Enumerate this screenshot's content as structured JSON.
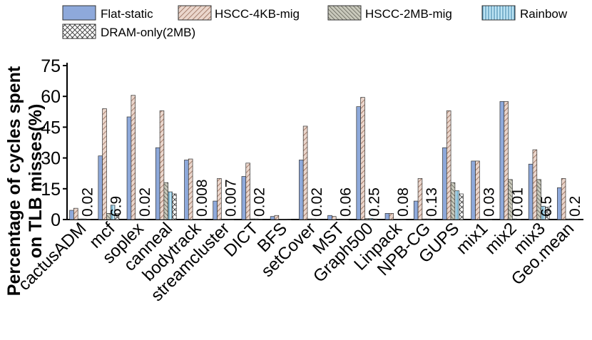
{
  "chart_data": {
    "type": "bar",
    "ylabel_line1": "Percentage of cycles spent",
    "ylabel_line2": "on TLB misses(%)",
    "xlabel": "",
    "ylim": [
      0,
      75
    ],
    "yticks": [
      0,
      15,
      30,
      45,
      60,
      75
    ],
    "grid": false,
    "legend_position": "top",
    "categories": [
      "cactusADM",
      "mcf",
      "soplex",
      "canneal",
      "bodytrack",
      "streamcluster",
      "DICT",
      "BFS",
      "setCover",
      "MST",
      "Graph500",
      "Linpack",
      "NPB-CG",
      "GUPS",
      "mix1",
      "mix2",
      "mix3",
      "Geo.mean"
    ],
    "series": [
      {
        "name": "Flat-static",
        "pattern": "solid",
        "color": "#8ea9db",
        "values": [
          4.5,
          31,
          50,
          35,
          29,
          9,
          21,
          1.5,
          29,
          2,
          55,
          3,
          9,
          35,
          28.5,
          57.5,
          27,
          15.5
        ]
      },
      {
        "name": "HSCC-4KB-mig",
        "pattern": "diag",
        "color": "#d8b8a8",
        "values": [
          5.5,
          54,
          60.5,
          53,
          29.5,
          20,
          27.5,
          2,
          45.5,
          1.5,
          59.5,
          3,
          20,
          53,
          28.5,
          57.5,
          34,
          20
        ]
      },
      {
        "name": "HSCC-2MB-mig",
        "pattern": "diag-dense",
        "color": "#bfbfb0",
        "values": [
          0.3,
          3,
          0.3,
          18,
          0.2,
          0.2,
          0.3,
          0.2,
          0.3,
          0.1,
          0.5,
          0.2,
          0.3,
          18,
          0.2,
          19.5,
          19.5,
          0.3
        ]
      },
      {
        "name": "Rainbow",
        "pattern": "lines",
        "color": "#bde4f4",
        "values": [
          0.3,
          7,
          0.3,
          13.5,
          0.2,
          0.2,
          0.3,
          0.2,
          0.3,
          0.1,
          0.5,
          0.2,
          0.3,
          14,
          0.2,
          0.3,
          6.5,
          0.3
        ]
      },
      {
        "name": "DRAM-only(2MB)",
        "pattern": "cross",
        "color": "#ffffff",
        "values": [
          0.2,
          3,
          0.2,
          12.5,
          0.1,
          0.1,
          0.2,
          0.1,
          0.2,
          0.1,
          0.3,
          0.1,
          0.2,
          12.5,
          0.1,
          0.2,
          6,
          0.2
        ]
      }
    ],
    "annotations": [
      {
        "category": "cactusADM",
        "text": "0.02"
      },
      {
        "category": "mcf",
        "text": "6.9"
      },
      {
        "category": "soplex",
        "text": "0.02"
      },
      {
        "category": "bodytrack",
        "text": "0.008"
      },
      {
        "category": "streamcluster",
        "text": "0.007"
      },
      {
        "category": "DICT",
        "text": "0.02"
      },
      {
        "category": "setCover",
        "text": "0.02"
      },
      {
        "category": "MST",
        "text": "0.06"
      },
      {
        "category": "Graph500",
        "text": "0.25"
      },
      {
        "category": "Linpack",
        "text": "0.08"
      },
      {
        "category": "NPB-CG",
        "text": "0.13"
      },
      {
        "category": "mix1",
        "text": "0.03"
      },
      {
        "category": "mix2",
        "text": "0.01"
      },
      {
        "category": "mix3",
        "text": "6.5"
      },
      {
        "category": "Geo.mean",
        "text": "0.2"
      }
    ]
  }
}
